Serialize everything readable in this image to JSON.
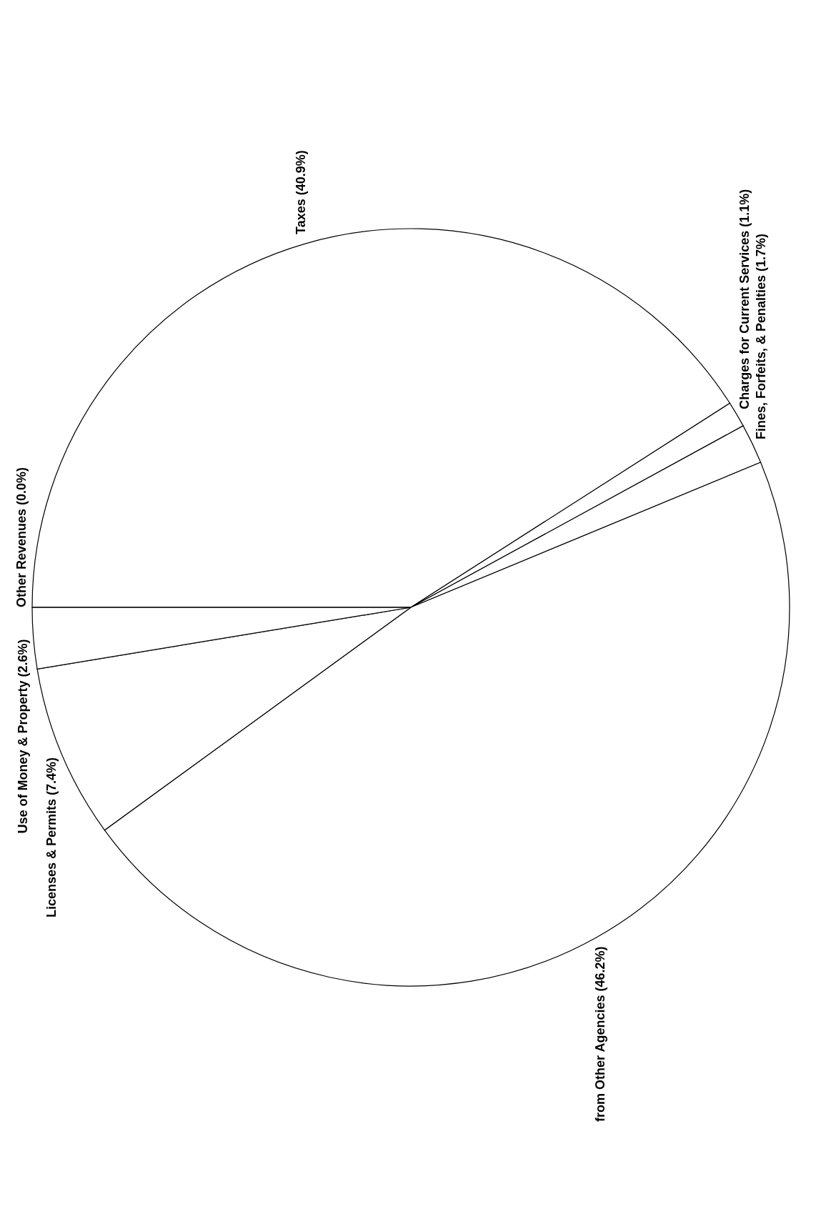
{
  "chart_data": {
    "type": "pie",
    "categories": [
      "Taxes (40.9%)",
      "Charges for Current Services (1.1%)",
      "Fines, Forfeits, & Penalties (1.7%)",
      "from Other Agencies (46.2%)",
      "Licenses & Permits (7.4%)",
      "Use of Money & Property (2.6%)",
      "Other Revenues (0.0%)"
    ],
    "values": [
      40.9,
      1.1,
      1.7,
      46.2,
      7.4,
      2.6,
      0.0
    ],
    "colors": [
      "#ffffff",
      "#ffffff",
      "#ffffff",
      "#ffffff",
      "#ffffff",
      "#ffffff",
      "#ffffff"
    ]
  }
}
